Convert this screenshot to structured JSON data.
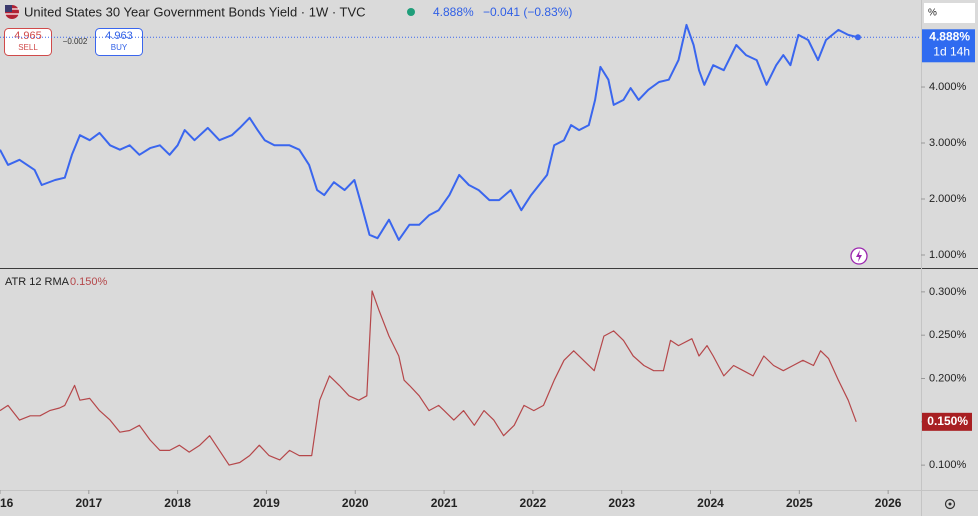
{
  "header": {
    "title": "United States 30 Year Government Bonds Yield · 1W · TVC",
    "price": "4.888%",
    "change": "−0.041 (−0.83%)",
    "sell_price": "4.965",
    "sell": "SELL",
    "spread": "−0.002",
    "buy_price": "4.963",
    "buy": "BUY",
    "unit": "%"
  },
  "chart_data": [
    {
      "type": "line",
      "series": [
        {
          "name": "United States 30 Year Government Bonds Yield",
          "color": "#3a66ee",
          "x": [
            2016.0,
            2016.09,
            2016.22,
            2016.39,
            2016.47,
            2016.62,
            2016.73,
            2016.81,
            2016.9,
            2017.01,
            2017.12,
            2017.24,
            2017.35,
            2017.46,
            2017.57,
            2017.69,
            2017.8,
            2017.91,
            2018.0,
            2018.08,
            2018.19,
            2018.34,
            2018.47,
            2018.61,
            2018.7,
            2018.81,
            2018.9,
            2018.98,
            2019.09,
            2019.26,
            2019.37,
            2019.48,
            2019.57,
            2019.65,
            2019.76,
            2019.88,
            2019.99,
            2020.07,
            2020.16,
            2020.25,
            2020.38,
            2020.49,
            2020.61,
            2020.72,
            2020.83,
            2020.94,
            2021.06,
            2021.17,
            2021.28,
            2021.39,
            2021.51,
            2021.62,
            2021.75,
            2021.87,
            2021.98,
            2022.07,
            2022.16,
            2022.24,
            2022.35,
            2022.43,
            2022.52,
            2022.63,
            2022.7,
            2022.76,
            2022.85,
            2022.91,
            2023.02,
            2023.1,
            2023.19,
            2023.3,
            2023.42,
            2023.53,
            2023.64,
            2023.73,
            2023.81,
            2023.87,
            2023.93,
            2024.03,
            2024.15,
            2024.29,
            2024.4,
            2024.52,
            2024.63,
            2024.74,
            2024.82,
            2024.9,
            2024.99,
            2025.1,
            2025.21,
            2025.3,
            2025.44,
            2025.55,
            2025.66
          ],
          "values": [
            2.88,
            2.61,
            2.7,
            2.52,
            2.25,
            2.34,
            2.38,
            2.79,
            3.14,
            3.05,
            3.18,
            2.96,
            2.88,
            2.96,
            2.79,
            2.91,
            2.96,
            2.79,
            2.96,
            3.23,
            3.05,
            3.27,
            3.05,
            3.14,
            3.27,
            3.45,
            3.23,
            3.05,
            2.96,
            2.96,
            2.88,
            2.61,
            2.16,
            2.07,
            2.3,
            2.16,
            2.34,
            1.89,
            1.36,
            1.3,
            1.63,
            1.27,
            1.54,
            1.54,
            1.71,
            1.8,
            2.07,
            2.43,
            2.25,
            2.16,
            1.98,
            1.98,
            2.16,
            1.8,
            2.07,
            2.25,
            2.43,
            2.96,
            3.05,
            3.32,
            3.23,
            3.32,
            3.77,
            4.36,
            4.13,
            3.68,
            3.77,
            3.98,
            3.77,
            3.95,
            4.09,
            4.13,
            4.48,
            5.11,
            4.75,
            4.3,
            4.04,
            4.39,
            4.3,
            4.75,
            4.57,
            4.48,
            4.04,
            4.39,
            4.57,
            4.39,
            4.93,
            4.84,
            4.48,
            4.84,
            5.02,
            4.93,
            4.888
          ]
        }
      ],
      "xlim": [
        2016.0,
        2026.37
      ],
      "ylim": [
        0.768,
        5.554
      ],
      "yticks": [
        {
          "value": 1,
          "label": "1.000%"
        },
        {
          "value": 2,
          "label": "2.000%"
        },
        {
          "value": 3,
          "label": "3.000%"
        },
        {
          "value": 4,
          "label": "4.000%"
        }
      ],
      "last_label": "4.888%",
      "countdown": "1d 14h"
    },
    {
      "type": "line",
      "title": "ATR 12 RMA",
      "last_value_label": "0.150%",
      "series": [
        {
          "name": "ATR 12 RMA",
          "color": "#b5474a",
          "x": [
            2016.0,
            2016.09,
            2016.22,
            2016.34,
            2016.45,
            2016.56,
            2016.67,
            2016.73,
            2016.84,
            2016.9,
            2017.01,
            2017.12,
            2017.24,
            2017.35,
            2017.46,
            2017.57,
            2017.69,
            2017.8,
            2017.91,
            2018.02,
            2018.13,
            2018.25,
            2018.36,
            2018.47,
            2018.58,
            2018.7,
            2018.81,
            2018.92,
            2019.03,
            2019.15,
            2019.26,
            2019.37,
            2019.51,
            2019.6,
            2019.71,
            2019.82,
            2019.93,
            2020.04,
            2020.13,
            2020.19,
            2020.27,
            2020.38,
            2020.49,
            2020.55,
            2020.61,
            2020.72,
            2020.83,
            2020.94,
            2021.0,
            2021.11,
            2021.22,
            2021.34,
            2021.45,
            2021.56,
            2021.67,
            2021.79,
            2021.9,
            2022.01,
            2022.12,
            2022.24,
            2022.35,
            2022.46,
            2022.57,
            2022.69,
            2022.8,
            2022.91,
            2023.02,
            2023.13,
            2023.25,
            2023.36,
            2023.47,
            2023.55,
            2023.64,
            2023.79,
            2023.87,
            2023.96,
            2024.03,
            2024.15,
            2024.26,
            2024.37,
            2024.48,
            2024.6,
            2024.71,
            2024.82,
            2024.93,
            2025.04,
            2025.16,
            2025.24,
            2025.33,
            2025.44,
            2025.55,
            2025.64
          ],
          "values": [
            0.163,
            0.169,
            0.152,
            0.157,
            0.157,
            0.163,
            0.166,
            0.169,
            0.192,
            0.175,
            0.177,
            0.163,
            0.152,
            0.138,
            0.14,
            0.146,
            0.129,
            0.117,
            0.117,
            0.123,
            0.115,
            0.123,
            0.134,
            0.117,
            0.1,
            0.103,
            0.111,
            0.123,
            0.111,
            0.106,
            0.117,
            0.111,
            0.111,
            0.175,
            0.203,
            0.192,
            0.18,
            0.175,
            0.18,
            0.301,
            0.278,
            0.249,
            0.226,
            0.198,
            0.192,
            0.18,
            0.163,
            0.169,
            0.163,
            0.152,
            0.163,
            0.146,
            0.163,
            0.152,
            0.134,
            0.146,
            0.169,
            0.163,
            0.169,
            0.198,
            0.221,
            0.232,
            0.221,
            0.209,
            0.249,
            0.255,
            0.244,
            0.226,
            0.215,
            0.209,
            0.209,
            0.244,
            0.238,
            0.246,
            0.226,
            0.238,
            0.226,
            0.203,
            0.215,
            0.209,
            0.203,
            0.226,
            0.215,
            0.209,
            0.215,
            0.221,
            0.215,
            0.232,
            0.223,
            0.198,
            0.175,
            0.15
          ]
        }
      ],
      "xlim": [
        2016.0,
        2026.37
      ],
      "ylim": [
        0.0713,
        0.3264
      ],
      "yticks": [
        {
          "value": 0.1,
          "label": "0.100%"
        },
        {
          "value": 0.15,
          "label": "0.150%"
        },
        {
          "value": 0.2,
          "label": "0.200%"
        },
        {
          "value": 0.25,
          "label": "0.250%"
        },
        {
          "value": 0.3,
          "label": "0.300%"
        }
      ],
      "xticks": [
        {
          "value": 2016,
          "label": "16"
        },
        2017,
        2018,
        2019,
        2020,
        2021,
        2022,
        2023,
        2024,
        2025,
        2026
      ]
    }
  ]
}
